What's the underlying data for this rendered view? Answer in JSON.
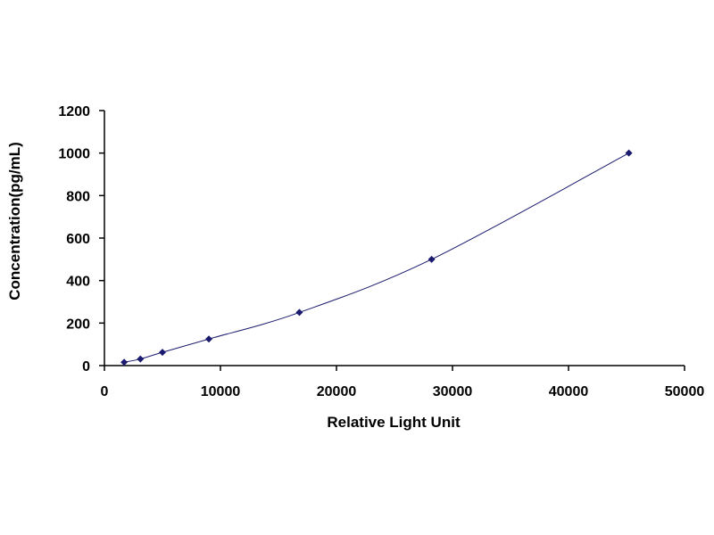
{
  "chart_data": {
    "type": "scatter",
    "title": "",
    "xlabel": "Relative Light Unit",
    "ylabel": "Concentration(pg/mL)",
    "xlim": [
      0,
      50000
    ],
    "ylim": [
      0,
      1200
    ],
    "xticks": [
      0,
      10000,
      20000,
      30000,
      40000,
      50000
    ],
    "yticks": [
      0,
      200,
      400,
      600,
      800,
      1000,
      1200
    ],
    "xtick_labels": [
      "0",
      "10000",
      "20000",
      "30000",
      "40000",
      "50000"
    ],
    "ytick_labels": [
      "0",
      "200",
      "400",
      "600",
      "800",
      "1000",
      "1200"
    ],
    "grid": false,
    "legend": "none",
    "colors": {
      "marker": "#1a1a6e",
      "line": "#1a1a6e",
      "axis": "#000000"
    },
    "series": [
      {
        "x": [
          1700,
          3100,
          5000,
          9000,
          16800,
          28200,
          45200
        ],
        "y": [
          15.6,
          31.2,
          62.5,
          125,
          250,
          500,
          1000
        ],
        "smooth_line": true,
        "marker": "diamond"
      }
    ]
  }
}
